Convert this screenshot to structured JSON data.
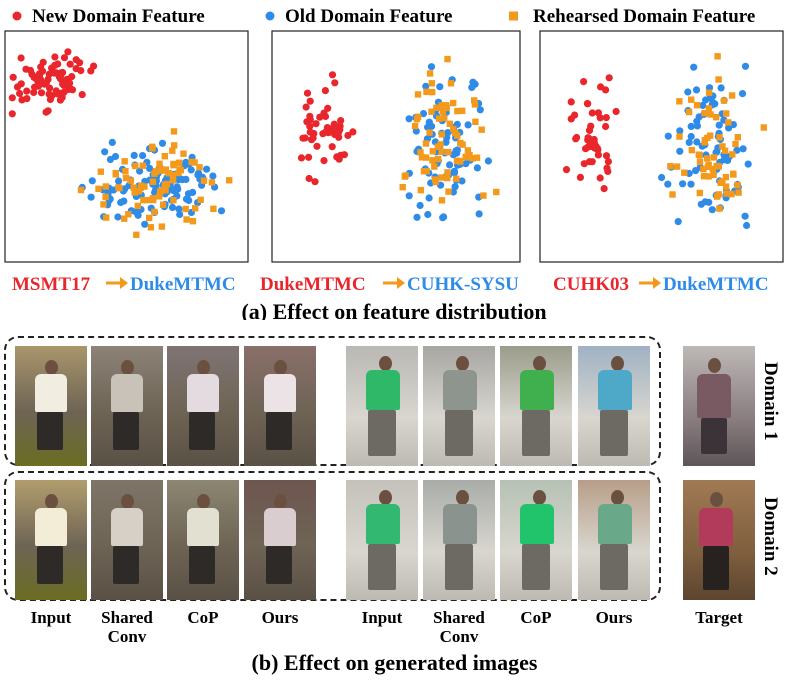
{
  "legend": {
    "new_label": "New Domain Feature",
    "old_label": "Old Domain Feature",
    "rehearsed_label": "Rehearsed Domain Feature"
  },
  "colors": {
    "new": "#e8262c",
    "old": "#2e8ce8",
    "rehearsed": "#f39a1c"
  },
  "caption_a": "(a) Effect on feature distribution",
  "caption_b": "(b) Effect on generated images",
  "panels": [
    {
      "source": "MSMT17",
      "target": "DukeMTMC"
    },
    {
      "source": "DukeMTMC",
      "target": "CUHK-SYSU"
    },
    {
      "source": "CUHK03",
      "target": "DukeMTMC"
    }
  ],
  "chart_data": {
    "type": "scatter",
    "title": "Effect on feature distribution",
    "series": [
      {
        "name": "New Domain Feature",
        "marker": "circle"
      },
      {
        "name": "Old Domain Feature",
        "marker": "circle"
      },
      {
        "name": "Rehearsed Domain Feature",
        "marker": "square"
      }
    ],
    "subplots": [
      {
        "label": "MSMT17 → DukeMTMC",
        "clusters": [
          {
            "series": "New Domain Feature",
            "center": [
              0.18,
              0.78
            ],
            "spread": [
              0.14,
              0.1
            ],
            "count": 75
          },
          {
            "series": "Old Domain Feature",
            "center": [
              0.62,
              0.33
            ],
            "spread": [
              0.22,
              0.15
            ],
            "count": 100
          },
          {
            "series": "Rehearsed Domain Feature",
            "center": [
              0.62,
              0.33
            ],
            "spread": [
              0.24,
              0.17
            ],
            "count": 80
          }
        ]
      },
      {
        "label": "DukeMTMC → CUHK-SYSU",
        "clusters": [
          {
            "series": "New Domain Feature",
            "center": [
              0.2,
              0.55
            ],
            "spread": [
              0.1,
              0.2
            ],
            "count": 50
          },
          {
            "series": "Old Domain Feature",
            "center": [
              0.7,
              0.5
            ],
            "spread": [
              0.14,
              0.28
            ],
            "count": 80
          },
          {
            "series": "Rehearsed Domain Feature",
            "center": [
              0.7,
              0.5
            ],
            "spread": [
              0.14,
              0.28
            ],
            "count": 70
          }
        ]
      },
      {
        "label": "CUHK03 → DukeMTMC",
        "clusters": [
          {
            "series": "New Domain Feature",
            "center": [
              0.22,
              0.55
            ],
            "spread": [
              0.09,
              0.22
            ],
            "count": 45
          },
          {
            "series": "Old Domain Feature",
            "center": [
              0.7,
              0.5
            ],
            "spread": [
              0.16,
              0.28
            ],
            "count": 75
          },
          {
            "series": "Rehearsed Domain Feature",
            "center": [
              0.7,
              0.5
            ],
            "spread": [
              0.16,
              0.28
            ],
            "count": 60
          }
        ]
      }
    ]
  },
  "domains": [
    "Domain 1",
    "Domain 2"
  ],
  "column_labels": {
    "group1": [
      "Input",
      "Shared\nConv",
      "CoP",
      "Ours"
    ],
    "group2": [
      "Input",
      "Shared\nConv",
      "CoP",
      "Ours"
    ],
    "target": "Target"
  }
}
